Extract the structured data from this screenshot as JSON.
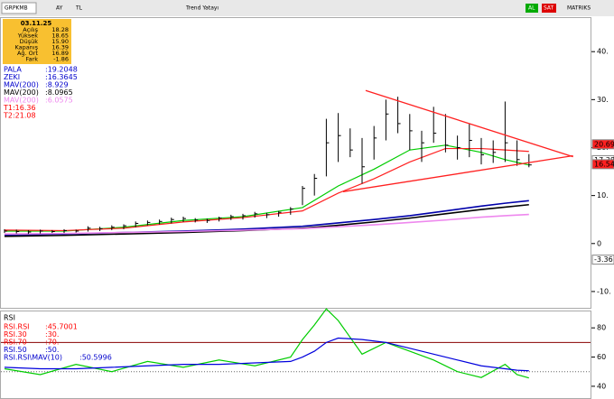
{
  "toolbar": {
    "symbol": "GRPKMB",
    "items": [
      "AY",
      "TL",
      "Trend Yatayı"
    ],
    "right": [
      "AL",
      "SAT",
      "MATRIKS"
    ]
  },
  "info_box": {
    "date": "03.11.25",
    "rows": [
      [
        "Açılış",
        "18.28"
      ],
      [
        "Yüksek",
        "18.65"
      ],
      [
        "Düşük",
        "15.90"
      ],
      [
        "Kapanış",
        "16.39"
      ],
      [
        "Ağ. Ort",
        "16.89"
      ],
      [
        "Fark",
        "-1.86"
      ]
    ]
  },
  "legend": [
    {
      "text": "PALA",
      "value": ":19.2048",
      "color": "#0000cc"
    },
    {
      "text": "ZEKI",
      "value": ":16.3645",
      "color": "#0000cc"
    },
    {
      "text": "MAV(200)",
      "value": ":8.929",
      "color": "#0000cc"
    },
    {
      "text": "MAV(200)",
      "value": ":8.0965",
      "color": "#000000"
    },
    {
      "text": "MAV(200)",
      "value": ":6.0575",
      "color": "#ee88ee"
    },
    {
      "text": "T1:16.36",
      "color": "#ff0000"
    },
    {
      "text": "T2:21.08",
      "color": "#ff0000"
    }
  ],
  "chart_data": [
    {
      "type": "ohlc",
      "color": "#000000",
      "ylim": [
        -13.4,
        47
      ],
      "yticks": [
        {
          "value": 40,
          "label": "40."
        },
        {
          "value": 30,
          "label": "30."
        },
        {
          "value": 20,
          "label": "20."
        },
        {
          "value": 10,
          "label": "10."
        },
        0,
        {
          "value": -10,
          "label": "-10."
        }
      ],
      "high": [
        3.0,
        2.9,
        2.8,
        2.9,
        2.8,
        3.0,
        2.9,
        3.6,
        3.5,
        3.8,
        4.0,
        4.6,
        4.8,
        5.0,
        5.4,
        5.6,
        5.3,
        5.2,
        5.6,
        6.0,
        6.2,
        6.6,
        6.4,
        6.8,
        7.6,
        12.0,
        14.5,
        26.0,
        27.2,
        24.0,
        22.0,
        24.5,
        30.0,
        30.6,
        27.0,
        23.5,
        28.5,
        27.0,
        22.5,
        25.0,
        22.0,
        21.5,
        29.6,
        21.5,
        18.65
      ],
      "low": [
        2.2,
        2.1,
        2.0,
        2.1,
        2.2,
        2.2,
        2.3,
        2.5,
        2.6,
        2.8,
        3.0,
        3.4,
        3.8,
        4.0,
        4.2,
        4.5,
        4.4,
        4.3,
        4.6,
        4.9,
        5.0,
        5.4,
        5.3,
        5.6,
        6.0,
        8.0,
        10.0,
        14.0,
        17.0,
        18.0,
        12.5,
        17.5,
        21.5,
        23.0,
        19.5,
        17.0,
        21.0,
        19.0,
        17.5,
        18.0,
        16.5,
        16.8,
        17.0,
        16.2,
        15.9
      ],
      "close": [
        2.6,
        2.5,
        2.4,
        2.6,
        2.5,
        2.7,
        2.6,
        3.2,
        3.1,
        3.4,
        3.7,
        4.2,
        4.4,
        4.6,
        5.0,
        5.2,
        4.9,
        4.8,
        5.3,
        5.6,
        5.8,
        6.2,
        6.0,
        6.5,
        7.2,
        11.5,
        13.6,
        21.0,
        22.5,
        19.5,
        16.0,
        22.0,
        27.0,
        25.0,
        23.5,
        21.0,
        23.0,
        20.5,
        20.0,
        21.5,
        18.5,
        19.0,
        21.0,
        17.5,
        16.39
      ],
      "lines": {
        "x": [
          0,
          5,
          10,
          15,
          20,
          25,
          28,
          31,
          34,
          37,
          40,
          42,
          44
        ],
        "series": [
          {
            "color": "#00cc00",
            "values": [
              2.6,
              2.6,
              3.4,
              4.8,
              5.6,
              7.5,
              12.0,
              15.5,
              19.5,
              20.5,
              19.0,
              17.5,
              16.36
            ]
          },
          {
            "color": "#ff2020",
            "values": [
              2.8,
              2.7,
              3.2,
              4.5,
              5.4,
              6.8,
              10.5,
              13.5,
              17.0,
              19.8,
              19.8,
              19.5,
              19.2
            ]
          },
          {
            "color": "#0000aa",
            "values": [
              1.8,
              2.0,
              2.3,
              2.6,
              3.0,
              3.6,
              4.3,
              5.0,
              5.8,
              6.8,
              7.8,
              8.4,
              8.93
            ]
          },
          {
            "color": "#000000",
            "values": [
              1.5,
              1.7,
              2.0,
              2.3,
              2.7,
              3.2,
              3.8,
              4.5,
              5.3,
              6.2,
              7.1,
              7.6,
              8.1
            ]
          },
          {
            "color": "#ee88ee",
            "values": [
              2.0,
              2.1,
              2.3,
              2.5,
              2.8,
              3.1,
              3.5,
              3.9,
              4.4,
              4.9,
              5.5,
              5.8,
              6.06
            ]
          }
        ]
      },
      "trendlines": [
        {
          "x": [
            30.3,
            47.7
          ],
          "y": [
            31.9,
            18.1
          ]
        },
        {
          "x": [
            28.4,
            47.7
          ],
          "y": [
            10.8,
            18.3
          ]
        }
      ],
      "price_tags": [
        {
          "value": 20.69,
          "color": "#ff2020"
        },
        {
          "value": 17.38,
          "color": "#ffffff"
        },
        {
          "value": 16.54,
          "color": "#ff2020"
        },
        {
          "value": -3.36,
          "color": "#ffffff"
        }
      ]
    },
    {
      "type": "rsi",
      "title": "RSI",
      "ylim": [
        31.9,
        91.25
      ],
      "yticks": [
        80,
        60,
        40
      ],
      "levels": [
        {
          "value": 70,
          "color": "#880000"
        },
        {
          "value": 50,
          "color": "#666666"
        }
      ],
      "legend": [
        {
          "text": "RSI.RSI",
          "value": ":45.7001",
          "color": "#ff0000"
        },
        {
          "text": "RSI.30",
          "value": ":30.",
          "color": "#ff0000"
        },
        {
          "text": "RSI.70",
          "value": ":70.",
          "color": "#ff0000"
        },
        {
          "text": "RSI.50",
          "value": ":50.",
          "color": "#0000cc"
        },
        {
          "text": "RSI.RSI\\MAV(10)",
          "value": ":50.5996",
          "color": "#0000cc"
        }
      ],
      "x": [
        0,
        3,
        6,
        9,
        12,
        15,
        18,
        21,
        24,
        25,
        26,
        27,
        28,
        30,
        32,
        34,
        36,
        38,
        40,
        42,
        43,
        44
      ],
      "series": [
        {
          "color": "#00cc00",
          "values": [
            52,
            48,
            55,
            50,
            57,
            53,
            58,
            54,
            60,
            72,
            82,
            93,
            85,
            62,
            70,
            64,
            58,
            50,
            46,
            55,
            48,
            45.7
          ]
        },
        {
          "color": "#0000dd",
          "values": [
            53,
            52,
            52,
            53,
            54,
            55,
            55,
            56,
            57,
            60,
            64,
            70,
            73,
            72,
            70,
            66,
            62,
            58,
            54,
            52,
            51,
            50.6
          ]
        }
      ]
    }
  ]
}
